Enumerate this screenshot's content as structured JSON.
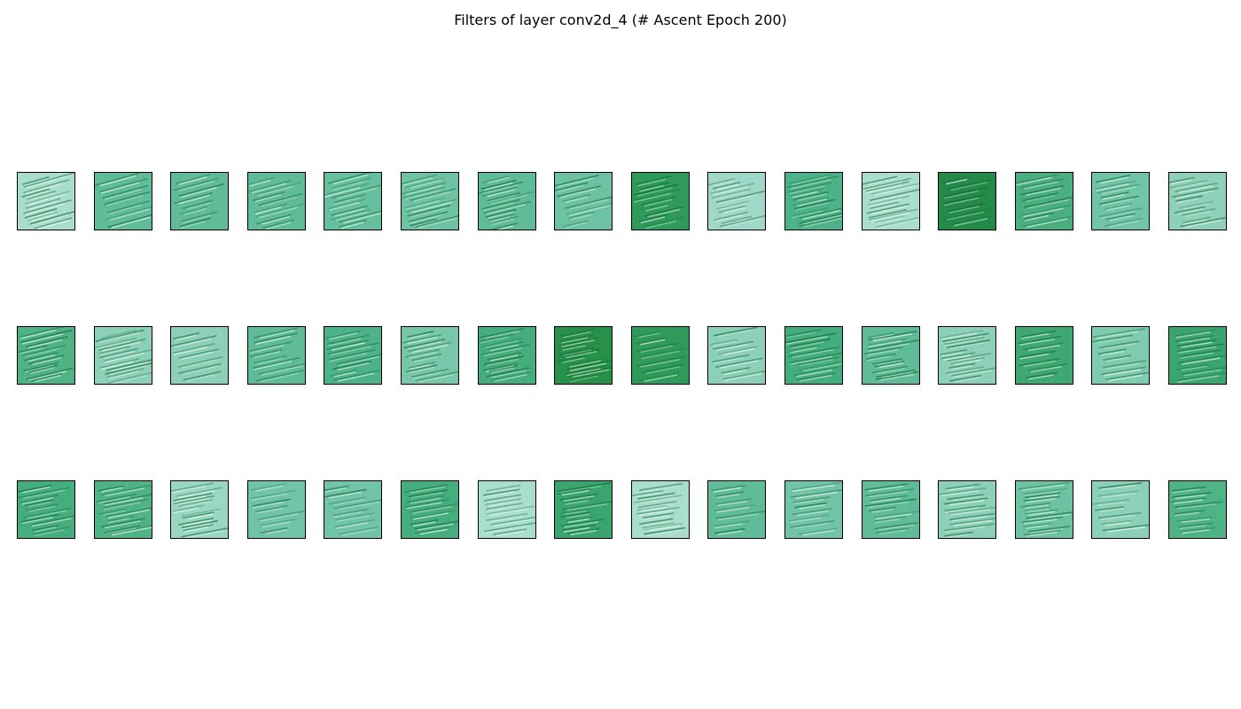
{
  "figure": {
    "title": "Filters of layer conv2d_4 (# Ascent Epoch 200)",
    "rows": 3,
    "cols": 16,
    "colormap": "BuGn",
    "base_colors": [
      [
        "#a9ddce",
        "#5fbb98",
        "#5fbb98",
        "#5fbb98",
        "#66c09f",
        "#6fc3a5",
        "#5fbb98",
        "#6cc2a2",
        "#2f9b5a",
        "#9fd8c8",
        "#4db289",
        "#a9ddce",
        "#238a4a",
        "#4aae80",
        "#72c4a8",
        "#8fd0bb"
      ],
      [
        "#4fb386",
        "#8dd0b9",
        "#8dd0b9",
        "#5fbb98",
        "#4db289",
        "#78c7aa",
        "#45ad7e",
        "#279049",
        "#2f9b5a",
        "#8dd0b9",
        "#44ad7d",
        "#5fbb98",
        "#8dd0b9",
        "#3fa872",
        "#7fcbb0",
        "#3aa56f"
      ],
      [
        "#45ad7e",
        "#4fb386",
        "#9ad6c4",
        "#72c4a8",
        "#72c4a8",
        "#45ad7e",
        "#a9ddce",
        "#3aa56f",
        "#a9ddce",
        "#5fbb98",
        "#72c4a8",
        "#5fbb98",
        "#8dd0b9",
        "#6cc2a2",
        "#8dd0b9",
        "#4fb386"
      ]
    ]
  }
}
